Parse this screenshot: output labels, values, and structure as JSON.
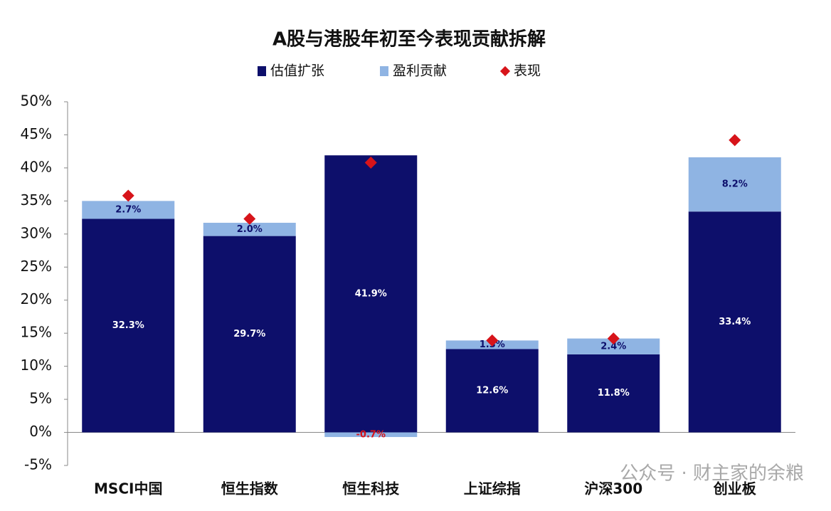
{
  "chart_data": {
    "type": "bar",
    "stacked": true,
    "title": "A股与港股年初至今表现贡献拆解",
    "categories": [
      "MSCI中国",
      "恒生指数",
      "恒生科技",
      "上证综指",
      "沪深300",
      "创业板"
    ],
    "series": [
      {
        "name": "估值扩张",
        "color": "#0d0f6b",
        "label_color": "#ffffff",
        "values": [
          32.3,
          29.7,
          41.9,
          12.6,
          11.8,
          33.4
        ],
        "value_labels": [
          "32.3%",
          "29.7%",
          "41.9%",
          "12.6%",
          "11.8%",
          "33.4%"
        ]
      },
      {
        "name": "盈利贡献",
        "color": "#8fb4e3",
        "label_color": "#0d0f6b",
        "values": [
          2.7,
          2.0,
          -0.7,
          1.3,
          2.4,
          8.2
        ],
        "value_labels": [
          "2.7%",
          "2.0%",
          "-0.7%",
          "1.3%",
          "2.4%",
          "8.2%"
        ]
      },
      {
        "name": "表现",
        "type": "scatter",
        "marker": "diamond",
        "color": "#d7141a",
        "values": [
          35.8,
          32.3,
          40.8,
          13.9,
          14.2,
          44.2
        ]
      }
    ],
    "ylim": [
      -5,
      50
    ],
    "yticks": [
      {
        "value": -5,
        "label": "-5%"
      },
      {
        "value": 0,
        "label": "0%"
      },
      {
        "value": 5,
        "label": "5%"
      },
      {
        "value": 10,
        "label": "10%"
      },
      {
        "value": 15,
        "label": "15%"
      },
      {
        "value": 20,
        "label": "20%"
      },
      {
        "value": 25,
        "label": "25%"
      },
      {
        "value": 30,
        "label": "30%"
      },
      {
        "value": 35,
        "label": "35%"
      },
      {
        "value": 40,
        "label": "40%"
      },
      {
        "value": 45,
        "label": "45%"
      },
      {
        "value": 50,
        "label": "50%"
      }
    ],
    "grid": false,
    "legend": "top",
    "watermark": "公众号 · 财主家的余粮"
  }
}
